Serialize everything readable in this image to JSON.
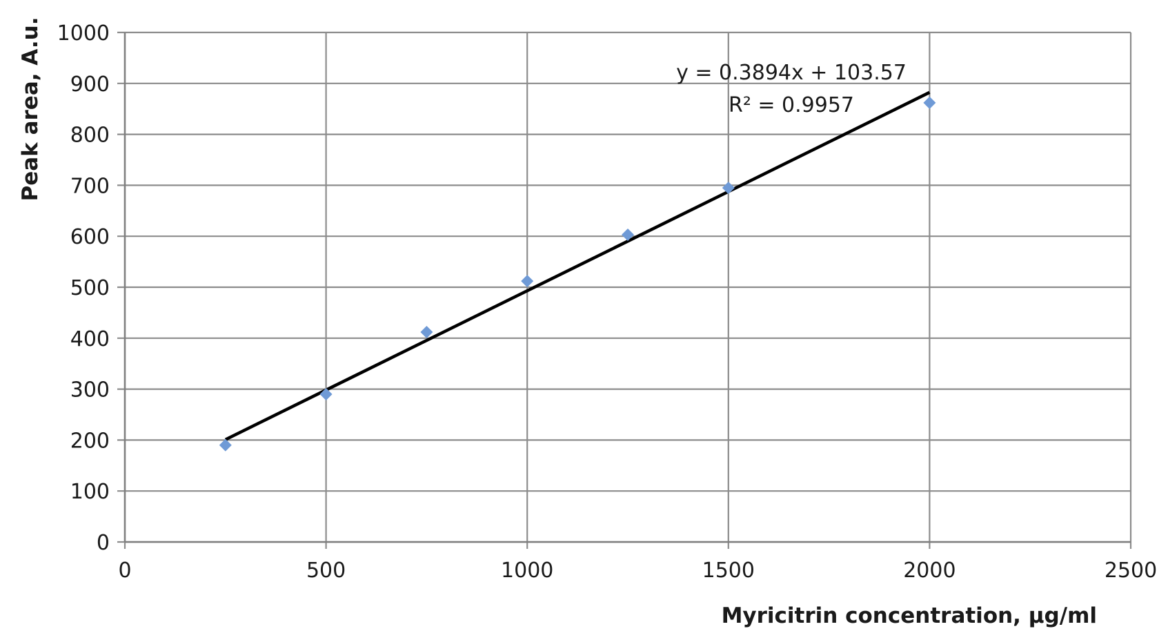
{
  "chart_data": {
    "type": "scatter",
    "title": "",
    "xlabel": "Myricitrin concentration, µg/ml",
    "ylabel": "Peak area, A.u.",
    "xlim": [
      0,
      2500
    ],
    "ylim": [
      0,
      1000
    ],
    "x_ticks": [
      "0",
      "500",
      "1000",
      "1500",
      "2000",
      "2500"
    ],
    "y_ticks": [
      "0",
      "100",
      "200",
      "300",
      "400",
      "500",
      "600",
      "700",
      "800",
      "900",
      "1000"
    ],
    "grid": true,
    "legend": "none",
    "series": [
      {
        "color": "#6f9ad6",
        "marker": "diamond",
        "points": [
          {
            "x": 250,
            "y": 190
          },
          {
            "x": 500,
            "y": 290
          },
          {
            "x": 750,
            "y": 412
          },
          {
            "x": 1000,
            "y": 512
          },
          {
            "x": 1250,
            "y": 603
          },
          {
            "x": 1500,
            "y": 695
          },
          {
            "x": 2000,
            "y": 862
          }
        ]
      }
    ],
    "trendline": {
      "type": "linear",
      "slope": 0.3894,
      "intercept": 103.57,
      "x_range": [
        250,
        2000
      ],
      "color": "#000000",
      "equation_label": "y = 0.3894x + 103.57",
      "r_squared_label": "R² = 0.9957"
    }
  }
}
